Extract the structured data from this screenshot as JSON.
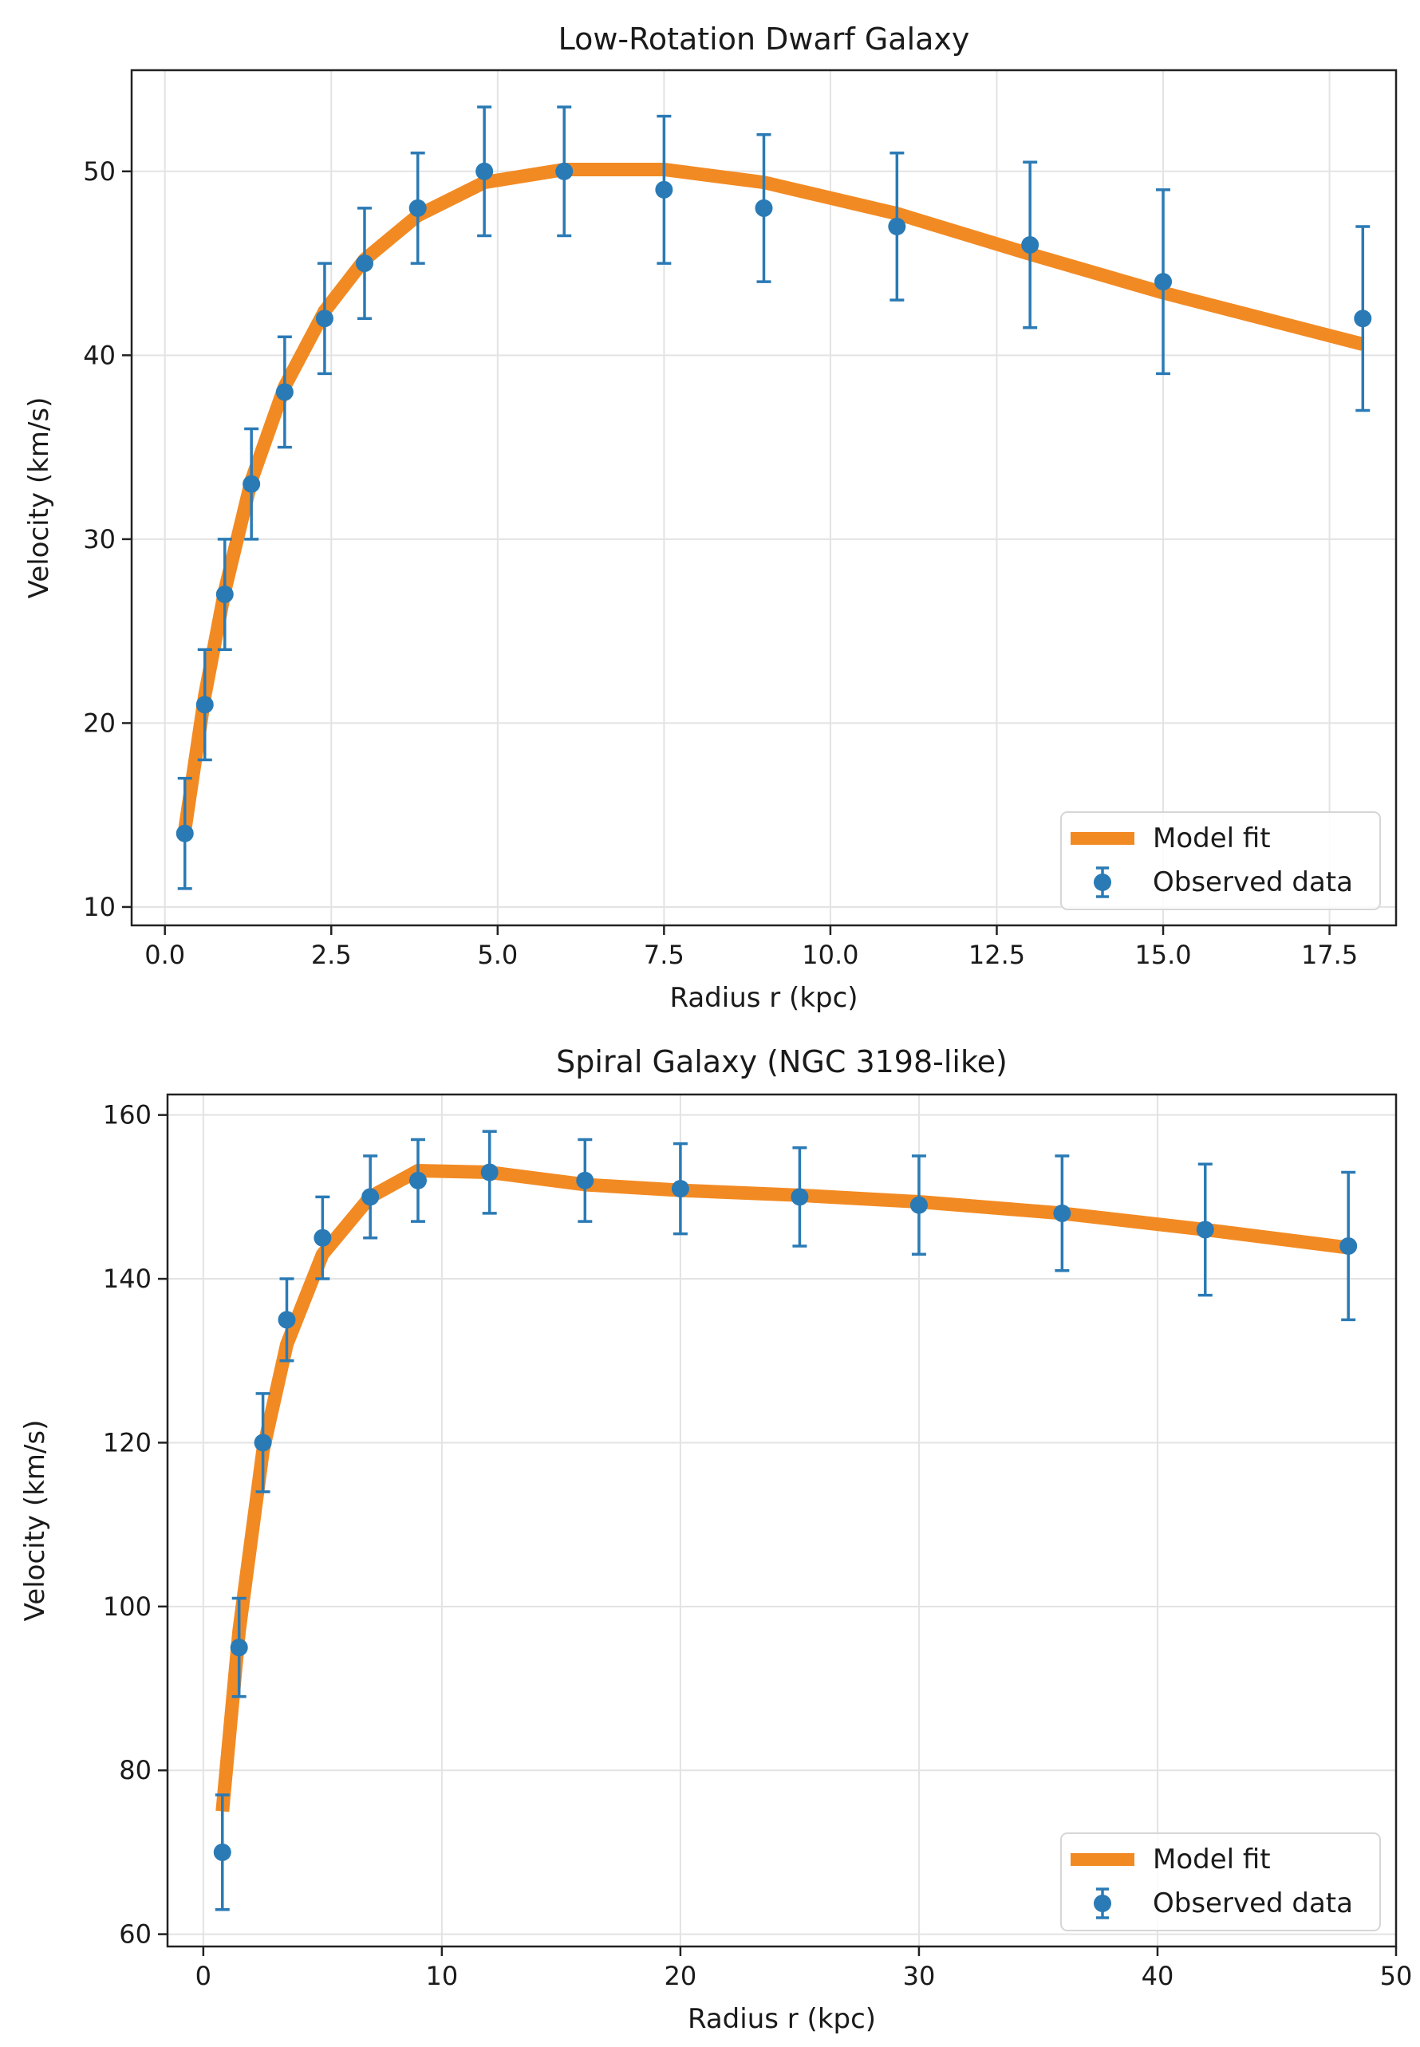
{
  "colors": {
    "model": "#f28a23",
    "observed": "#2a7ab5"
  },
  "chart_data": [
    {
      "type": "line",
      "title": "Low-Rotation Dwarf Galaxy",
      "xlabel": "Radius r (kpc)",
      "ylabel": "Velocity (km/s)",
      "xlim": [
        -0.5,
        18.5
      ],
      "ylim": [
        9,
        55.5
      ],
      "xticks": [
        0,
        2.5,
        5,
        7.5,
        10,
        12.5,
        15,
        17.5
      ],
      "xtick_labels": [
        "0.0",
        "2.5",
        "5.0",
        "7.5",
        "10.0",
        "12.5",
        "15.0",
        "17.5"
      ],
      "yticks": [
        10,
        20,
        30,
        40,
        50
      ],
      "ytick_labels": [
        "10",
        "20",
        "30",
        "40",
        "50"
      ],
      "grid": true,
      "legend": "bottom-right",
      "legend_entries": [
        "Model fit",
        "Observed data"
      ],
      "series": [
        {
          "name": "Model fit",
          "type": "line",
          "x": [
            0.3,
            0.6,
            0.9,
            1.3,
            1.8,
            2.4,
            3.0,
            3.8,
            4.8,
            6.0,
            7.5,
            9.0,
            11.0,
            13.0,
            15.0,
            18.0
          ],
          "y": [
            14.2,
            21.5,
            27.2,
            33.2,
            38.3,
            42.4,
            45.2,
            47.6,
            49.4,
            50.1,
            50.1,
            49.4,
            47.7,
            45.5,
            43.4,
            40.6
          ]
        },
        {
          "name": "Observed data",
          "type": "errorbar",
          "x": [
            0.3,
            0.6,
            0.9,
            1.3,
            1.8,
            2.4,
            3.0,
            3.8,
            4.8,
            6.0,
            7.5,
            9.0,
            11.0,
            13.0,
            15.0,
            18.0
          ],
          "y": [
            14,
            21,
            27,
            33,
            38,
            42,
            45,
            48,
            50,
            50,
            49,
            48,
            47,
            46,
            44,
            42
          ],
          "yerr": [
            3,
            3,
            3,
            3,
            3,
            3,
            3,
            3,
            3.5,
            3.5,
            4,
            4,
            4,
            4.5,
            5,
            5
          ]
        }
      ]
    },
    {
      "type": "line",
      "title": "Spiral Galaxy (NGC 3198-like)",
      "xlabel": "Radius r (kpc)",
      "ylabel": "Velocity (km/s)",
      "xlim": [
        -1.5,
        50
      ],
      "ylim": [
        58.5,
        162.5
      ],
      "xticks": [
        0,
        10,
        20,
        30,
        40,
        50
      ],
      "xtick_labels": [
        "0",
        "10",
        "20",
        "30",
        "40",
        "50"
      ],
      "yticks": [
        60,
        80,
        100,
        120,
        140,
        160
      ],
      "ytick_labels": [
        "60",
        "80",
        "100",
        "120",
        "140",
        "160"
      ],
      "grid": true,
      "legend": "bottom-right",
      "legend_entries": [
        "Model fit",
        "Observed data"
      ],
      "series": [
        {
          "name": "Model fit",
          "type": "line",
          "x": [
            0.8,
            1.5,
            2.5,
            3.5,
            5.0,
            7.0,
            9.0,
            12.0,
            16.0,
            20.0,
            25.0,
            30.0,
            36.0,
            42.0,
            48.0
          ],
          "y": [
            75,
            97,
            119,
            132,
            143,
            150,
            153.2,
            153,
            151.5,
            150.8,
            150.2,
            149.4,
            148,
            146,
            143.8
          ]
        },
        {
          "name": "Observed data",
          "type": "errorbar",
          "x": [
            0.8,
            1.5,
            2.5,
            3.5,
            5.0,
            7.0,
            9.0,
            12.0,
            16.0,
            20.0,
            25.0,
            30.0,
            36.0,
            42.0,
            48.0
          ],
          "y": [
            70,
            95,
            120,
            135,
            145,
            150,
            152,
            153,
            152,
            151,
            150,
            149,
            148,
            146,
            144
          ],
          "yerr": [
            7,
            6,
            6,
            5,
            5,
            5,
            5,
            5,
            5,
            5.5,
            6,
            6,
            7,
            8,
            9
          ]
        }
      ]
    }
  ]
}
